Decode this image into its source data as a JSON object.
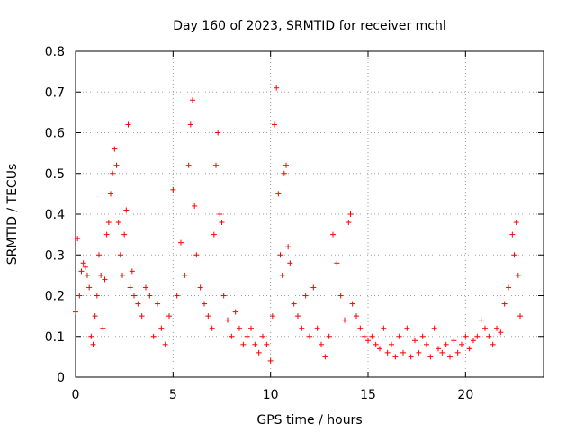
{
  "chart_data": {
    "type": "scatter",
    "title": "Day 160 of 2023, SRMTID for receiver mchl",
    "xlabel": "GPS time / hours",
    "ylabel": "SRMTID / TECUs",
    "xlim": [
      0,
      24
    ],
    "ylim": [
      0,
      0.8
    ],
    "x_ticks": [
      0,
      5,
      10,
      15,
      20
    ],
    "x_tick_labels": [
      "0",
      "5",
      "10",
      "15",
      "20"
    ],
    "y_ticks": [
      0,
      0.1,
      0.2,
      0.3,
      0.4,
      0.5,
      0.6,
      0.7,
      0.8
    ],
    "y_tick_labels": [
      "0",
      "0.1",
      "0.2",
      "0.3",
      "0.4",
      "0.5",
      "0.6",
      "0.7",
      "0.8"
    ],
    "grid": true,
    "marker": "+",
    "series": [
      {
        "name": "SRMTID",
        "color": "#ff0000",
        "x": [
          0.0,
          0.1,
          0.2,
          0.3,
          0.4,
          0.5,
          0.6,
          0.7,
          0.8,
          0.9,
          1.0,
          1.1,
          1.2,
          1.3,
          1.4,
          1.5,
          1.6,
          1.7,
          1.8,
          1.9,
          2.0,
          2.1,
          2.2,
          2.3,
          2.4,
          2.5,
          2.6,
          2.7,
          2.8,
          2.9,
          3.0,
          3.2,
          3.4,
          3.6,
          3.8,
          4.0,
          4.2,
          4.4,
          4.6,
          4.8,
          5.0,
          5.2,
          5.4,
          5.6,
          5.8,
          5.9,
          6.0,
          6.1,
          6.2,
          6.4,
          6.6,
          6.8,
          7.0,
          7.1,
          7.2,
          7.3,
          7.4,
          7.5,
          7.6,
          7.8,
          8.0,
          8.2,
          8.4,
          8.6,
          8.8,
          9.0,
          9.2,
          9.4,
          9.6,
          9.8,
          10.0,
          10.1,
          10.2,
          10.3,
          10.4,
          10.5,
          10.6,
          10.7,
          10.8,
          10.9,
          11.0,
          11.2,
          11.4,
          11.6,
          11.8,
          12.0,
          12.2,
          12.4,
          12.6,
          12.8,
          13.0,
          13.2,
          13.4,
          13.6,
          13.8,
          14.0,
          14.1,
          14.2,
          14.4,
          14.6,
          14.8,
          15.0,
          15.2,
          15.4,
          15.6,
          15.8,
          16.0,
          16.2,
          16.4,
          16.6,
          16.8,
          17.0,
          17.2,
          17.4,
          17.6,
          17.8,
          18.0,
          18.2,
          18.4,
          18.6,
          18.8,
          19.0,
          19.2,
          19.4,
          19.6,
          19.8,
          20.0,
          20.2,
          20.4,
          20.6,
          20.8,
          21.0,
          21.2,
          21.4,
          21.6,
          21.8,
          22.0,
          22.2,
          22.4,
          22.5,
          22.6,
          22.7,
          22.8
        ],
        "values": [
          0.16,
          0.34,
          0.2,
          0.26,
          0.28,
          0.27,
          0.25,
          0.22,
          0.1,
          0.08,
          0.15,
          0.2,
          0.3,
          0.25,
          0.12,
          0.24,
          0.35,
          0.38,
          0.45,
          0.5,
          0.56,
          0.52,
          0.38,
          0.3,
          0.25,
          0.35,
          0.41,
          0.62,
          0.22,
          0.26,
          0.2,
          0.18,
          0.15,
          0.22,
          0.2,
          0.1,
          0.18,
          0.12,
          0.08,
          0.15,
          0.46,
          0.2,
          0.33,
          0.25,
          0.52,
          0.62,
          0.68,
          0.42,
          0.3,
          0.22,
          0.18,
          0.15,
          0.12,
          0.35,
          0.52,
          0.6,
          0.4,
          0.38,
          0.2,
          0.14,
          0.1,
          0.16,
          0.12,
          0.08,
          0.1,
          0.12,
          0.08,
          0.06,
          0.1,
          0.08,
          0.04,
          0.15,
          0.62,
          0.71,
          0.45,
          0.3,
          0.25,
          0.5,
          0.52,
          0.32,
          0.28,
          0.18,
          0.15,
          0.12,
          0.2,
          0.1,
          0.22,
          0.12,
          0.08,
          0.05,
          0.1,
          0.35,
          0.28,
          0.2,
          0.14,
          0.38,
          0.4,
          0.18,
          0.15,
          0.12,
          0.1,
          0.09,
          0.1,
          0.08,
          0.07,
          0.12,
          0.06,
          0.08,
          0.05,
          0.1,
          0.06,
          0.12,
          0.05,
          0.09,
          0.06,
          0.1,
          0.08,
          0.05,
          0.12,
          0.07,
          0.06,
          0.08,
          0.05,
          0.09,
          0.06,
          0.08,
          0.1,
          0.07,
          0.09,
          0.1,
          0.14,
          0.12,
          0.1,
          0.08,
          0.12,
          0.11,
          0.18,
          0.22,
          0.35,
          0.3,
          0.38,
          0.25,
          0.15
        ]
      }
    ]
  }
}
